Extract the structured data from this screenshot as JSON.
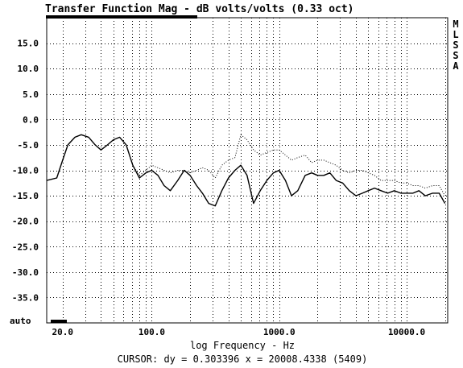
{
  "chart_data": {
    "type": "line",
    "title": "Transfer Function Mag - dB volts/volts (0.33 oct)",
    "xlabel": "log Frequency - Hz",
    "ylabel": "",
    "x_scale": "log",
    "xlim": [
      15,
      21000
    ],
    "ylim": [
      -40,
      20
    ],
    "y_tick_values": [
      15,
      10,
      5,
      0,
      -5,
      -10,
      -15,
      -20,
      -25,
      -30,
      -35
    ],
    "y_tick_labels": [
      "15.0",
      "10.0",
      "5.0",
      "0.0",
      "-5.0",
      "-10.0",
      "-15.0",
      "-20.0",
      "-25.0",
      "-30.0",
      "-35.0"
    ],
    "y_bottom_label": "auto",
    "x_tick_values": [
      20,
      100,
      1000,
      10000
    ],
    "x_tick_labels": [
      "20.0",
      "100.0",
      "1000.0",
      "10000.0"
    ],
    "grid": true,
    "side_label": [
      "M",
      "L",
      "S",
      "S",
      "A"
    ],
    "cursor_readout": "CURSOR: dy = 0.303396 x = 20008.4338 (5409)",
    "series": [
      {
        "style": "solid",
        "color": "#000000",
        "x": [
          15,
          18,
          20,
          22,
          25,
          28,
          32,
          36,
          40,
          45,
          50,
          56,
          63,
          71,
          80,
          90,
          100,
          112,
          125,
          140,
          160,
          180,
          200,
          225,
          250,
          280,
          315,
          355,
          400,
          450,
          500,
          560,
          630,
          710,
          800,
          900,
          1000,
          1120,
          1250,
          1400,
          1600,
          1800,
          2000,
          2240,
          2500,
          2800,
          3150,
          3550,
          4000,
          4500,
          5000,
          5600,
          6300,
          7100,
          8000,
          9000,
          10000,
          11200,
          12500,
          14000,
          16000,
          18000,
          20000
        ],
        "y": [
          -12,
          -11.5,
          -8,
          -5,
          -3.5,
          -3,
          -3.5,
          -5,
          -6,
          -5,
          -4,
          -3.5,
          -5,
          -9,
          -11.5,
          -10.5,
          -10,
          -11,
          -13,
          -14,
          -12,
          -10,
          -11,
          -13,
          -14.5,
          -16.5,
          -17,
          -14,
          -11.5,
          -10,
          -9,
          -11,
          -16.5,
          -14,
          -12,
          -10.5,
          -10,
          -12,
          -15,
          -14,
          -11,
          -10.5,
          -11,
          -11,
          -10.5,
          -12,
          -12.5,
          -14,
          -15,
          -14.5,
          -14,
          -13.5,
          -14,
          -14.5,
          -14,
          -14.5,
          -14.5,
          -14.5,
          -14,
          -15,
          -14.5,
          -14.5,
          -16.5
        ]
      },
      {
        "style": "dotted",
        "color": "#000000",
        "x": [
          15,
          18,
          20,
          22,
          25,
          28,
          32,
          36,
          40,
          45,
          50,
          56,
          63,
          71,
          80,
          90,
          100,
          112,
          125,
          140,
          160,
          180,
          200,
          225,
          250,
          280,
          315,
          355,
          400,
          450,
          500,
          560,
          630,
          710,
          800,
          900,
          1000,
          1120,
          1250,
          1400,
          1600,
          1800,
          2000,
          2240,
          2500,
          2800,
          3150,
          3550,
          4000,
          4500,
          5000,
          5600,
          6300,
          7100,
          8000,
          9000,
          10000,
          11200,
          12500,
          14000,
          16000,
          18000,
          20000
        ],
        "y": [
          -12,
          -11.5,
          -8,
          -5,
          -3.5,
          -3,
          -3.5,
          -5,
          -6,
          -5,
          -4,
          -3.5,
          -5,
          -9,
          -11,
          -10,
          -9,
          -9.5,
          -10,
          -10.5,
          -10,
          -10,
          -10.5,
          -10,
          -9.5,
          -10,
          -11.5,
          -9,
          -8,
          -7.5,
          -3,
          -4,
          -6,
          -7,
          -6.5,
          -6,
          -6,
          -7,
          -8,
          -7.5,
          -7,
          -8.5,
          -8,
          -8,
          -8.5,
          -9,
          -10,
          -10.5,
          -10,
          -10,
          -10.5,
          -11,
          -12,
          -12,
          -12,
          -12.5,
          -12.5,
          -13,
          -13,
          -13.5,
          -13,
          -13,
          -15
        ]
      }
    ]
  }
}
